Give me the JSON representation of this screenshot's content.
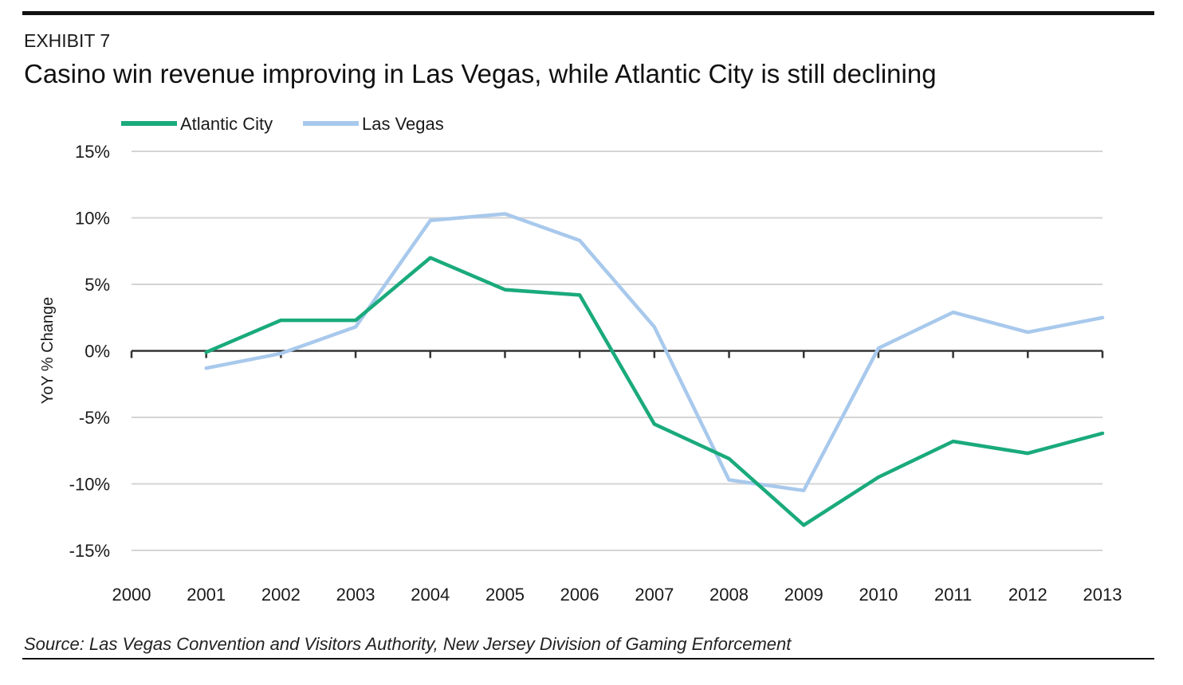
{
  "header": {
    "exhibit": "EXHIBIT 7",
    "title": "Casino win revenue improving in Las Vegas, while Atlantic City is still declining"
  },
  "footer": {
    "source": "Source: Las Vegas Convention and Visitors Authority, New Jersey Division of Gaming Enforcement"
  },
  "chart_data": {
    "type": "line",
    "title": "Casino win revenue improving in Las Vegas, while Atlantic City is still declining",
    "xlabel": "",
    "ylabel": "YoY % Change",
    "x": [
      2000,
      2001,
      2002,
      2003,
      2004,
      2005,
      2006,
      2007,
      2008,
      2009,
      2010,
      2011,
      2012,
      2013
    ],
    "x_tick_labels": [
      "2000",
      "2001",
      "2002",
      "2003",
      "2004",
      "2005",
      "2006",
      "2007",
      "2008",
      "2009",
      "2010",
      "2011",
      "2012",
      "2013"
    ],
    "y_ticks": [
      15,
      10,
      5,
      0,
      -5,
      -10,
      -15
    ],
    "y_tick_labels": [
      "15%",
      "10%",
      "5%",
      "0%",
      "-5%",
      "-10%",
      "-15%"
    ],
    "ylim": [
      -15,
      15
    ],
    "xlim": [
      2000,
      2013
    ],
    "grid": "horizontal",
    "legend": "top-left",
    "series": [
      {
        "name": "Atlantic City",
        "color": "#1aaa7c",
        "x": [
          2001,
          2002,
          2003,
          2004,
          2005,
          2006,
          2007,
          2008,
          2009,
          2010,
          2011,
          2012,
          2013
        ],
        "values": [
          -0.1,
          2.3,
          2.3,
          7.0,
          4.6,
          4.2,
          -5.5,
          -8.1,
          -13.1,
          -9.5,
          -6.8,
          -7.7,
          -6.2
        ]
      },
      {
        "name": "Las Vegas",
        "color": "#a8c9ec",
        "x": [
          2001,
          2002,
          2003,
          2004,
          2005,
          2006,
          2007,
          2008,
          2009,
          2010,
          2011,
          2012,
          2013
        ],
        "values": [
          -1.3,
          -0.2,
          1.8,
          9.8,
          10.3,
          8.3,
          1.8,
          -9.7,
          -10.5,
          0.2,
          2.9,
          1.4,
          2.5
        ]
      }
    ]
  }
}
